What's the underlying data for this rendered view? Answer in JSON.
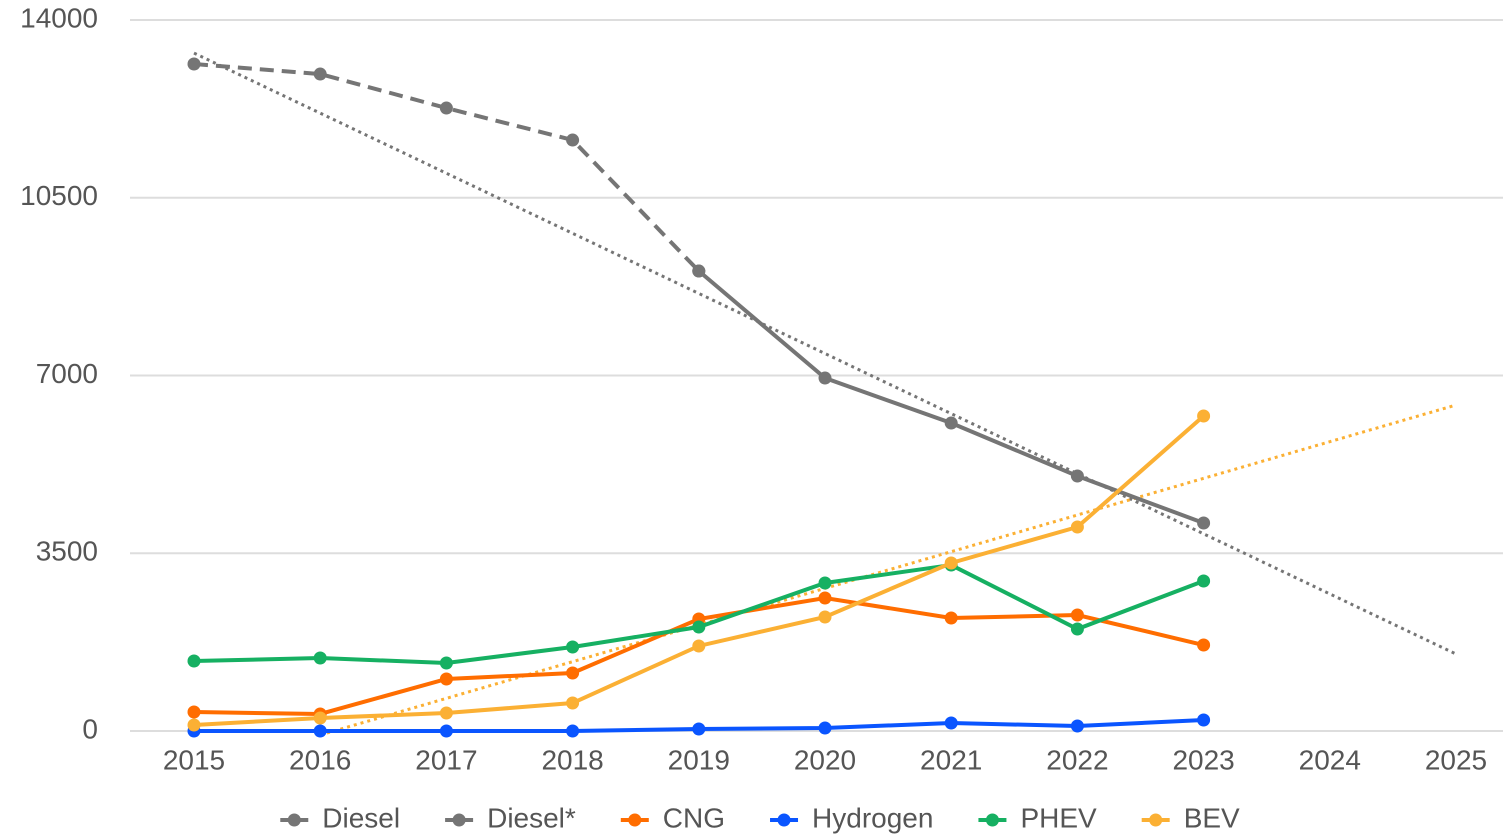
{
  "chart_data": {
    "type": "line",
    "categories": [
      "2015",
      "2016",
      "2017",
      "2018",
      "2019",
      "2020",
      "2021",
      "2022",
      "2023",
      "2024",
      "2025"
    ],
    "series": [
      {
        "name": "Diesel",
        "color": "#757575",
        "dash": false,
        "values": [
          null,
          null,
          null,
          null,
          9057,
          6950,
          6064,
          5021,
          4095,
          null,
          null
        ]
      },
      {
        "name": "Diesel*",
        "color": "#757575",
        "dash": true,
        "values": [
          13133,
          12936,
          12266,
          11636,
          9057,
          null,
          null,
          null,
          null,
          null,
          null
        ]
      },
      {
        "name": "CNG",
        "color": "#ff6d00",
        "dash": false,
        "values": [
          374,
          335,
          1024,
          1142,
          2205,
          2619,
          2225,
          2284,
          1693,
          null,
          null
        ]
      },
      {
        "name": "Hydrogen",
        "color": "#0a55ff",
        "dash": false,
        "values": [
          0,
          0,
          0,
          0,
          40,
          59,
          158,
          98,
          217,
          null,
          null
        ]
      },
      {
        "name": "PHEV",
        "color": "#16b062",
        "dash": false,
        "values": [
          1378,
          1437,
          1339,
          1654,
          2048,
          2914,
          3268,
          2008,
          2953,
          null,
          null
        ]
      },
      {
        "name": "BEV",
        "color": "#fbb034",
        "dash": false,
        "values": [
          118,
          256,
          354,
          551,
          1674,
          2245,
          3308,
          4017,
          6202,
          null,
          null
        ]
      }
    ],
    "trendlines": [
      {
        "color": "#757575",
        "from": 0,
        "to": 10,
        "values": [
          13349,
          1516
        ]
      },
      {
        "color": "#fbb034",
        "from": 1,
        "to": 10,
        "values": [
          -79,
          6419
        ]
      }
    ],
    "ylim": [
      0,
      14000
    ],
    "yticks": [
      0,
      3500,
      7000,
      10500,
      14000
    ],
    "grid": true,
    "legend": "bottom"
  }
}
